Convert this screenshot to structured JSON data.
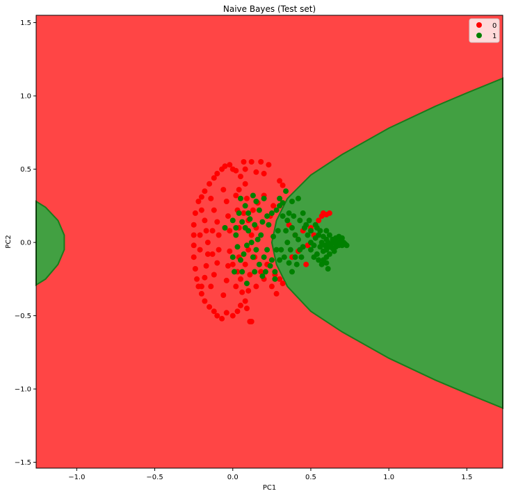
{
  "chart_data": {
    "type": "scatter",
    "title": "Naive Bayes (Test set)",
    "xlabel": "PC1",
    "ylabel": "PC2",
    "xlim": [
      -1.26,
      1.73
    ],
    "ylim": [
      -1.54,
      1.55
    ],
    "x_ticks": [
      -1.0,
      -0.5,
      0.0,
      0.5,
      1.0,
      1.5
    ],
    "x_tick_labels": [
      "−1.0",
      "−0.5",
      "0.0",
      "0.5",
      "1.0",
      "1.5"
    ],
    "y_ticks": [
      -1.5,
      -1.0,
      -0.5,
      0.0,
      0.5,
      1.0,
      1.5
    ],
    "y_tick_labels": [
      "−1.5",
      "−1.0",
      "−0.5",
      "0.0",
      "0.5",
      "1.0",
      "1.5"
    ],
    "grid": false,
    "legend": {
      "placement": "top-right",
      "entries": [
        "0",
        "1"
      ]
    },
    "colors": {
      "class_0_region": "#ff4545",
      "class_1_region": "#42a042",
      "class_0_points": "#ff0000",
      "class_1_points": "#008000",
      "boundary": "#1a7a1a"
    },
    "decision_regions": {
      "background_class": "0",
      "class_1_regions": [
        {
          "polygon": [
            [
              0.35,
              0.3
            ],
            [
              0.5,
              0.46
            ],
            [
              0.7,
              0.6
            ],
            [
              1.0,
              0.78
            ],
            [
              1.3,
              0.93
            ],
            [
              1.5,
              1.02
            ],
            [
              1.73,
              1.12
            ],
            [
              1.73,
              -1.13
            ],
            [
              1.5,
              -1.03
            ],
            [
              1.3,
              -0.94
            ],
            [
              1.0,
              -0.79
            ],
            [
              0.7,
              -0.61
            ],
            [
              0.5,
              -0.47
            ],
            [
              0.35,
              -0.3
            ],
            [
              0.28,
              -0.15
            ],
            [
              0.25,
              0.0
            ],
            [
              0.28,
              0.15
            ]
          ]
        },
        {
          "polygon": [
            [
              -1.26,
              0.28
            ],
            [
              -1.2,
              0.24
            ],
            [
              -1.12,
              0.15
            ],
            [
              -1.08,
              0.05
            ],
            [
              -1.08,
              -0.05
            ],
            [
              -1.12,
              -0.15
            ],
            [
              -1.2,
              -0.25
            ],
            [
              -1.26,
              -0.29
            ]
          ]
        }
      ]
    },
    "series": [
      {
        "name": "0",
        "points": [
          [
            -0.22,
            0.28
          ],
          [
            -0.2,
            0.31
          ],
          [
            -0.18,
            0.35
          ],
          [
            -0.15,
            0.4
          ],
          [
            -0.12,
            0.44
          ],
          [
            -0.1,
            0.47
          ],
          [
            -0.07,
            0.5
          ],
          [
            -0.05,
            0.52
          ],
          [
            -0.02,
            0.53
          ],
          [
            0.0,
            0.5
          ],
          [
            0.02,
            0.49
          ],
          [
            0.05,
            0.45
          ],
          [
            0.07,
            0.55
          ],
          [
            0.12,
            0.55
          ],
          [
            0.18,
            0.55
          ],
          [
            0.23,
            0.53
          ],
          [
            0.08,
            0.5
          ],
          [
            0.15,
            0.48
          ],
          [
            0.2,
            0.47
          ],
          [
            0.3,
            0.42
          ],
          [
            0.32,
            0.39
          ],
          [
            0.08,
            0.4
          ],
          [
            0.04,
            0.36
          ],
          [
            -0.24,
            0.2
          ],
          [
            -0.25,
            0.12
          ],
          [
            -0.25,
            0.05
          ],
          [
            -0.25,
            -0.02
          ],
          [
            -0.25,
            -0.1
          ],
          [
            -0.24,
            -0.18
          ],
          [
            -0.23,
            -0.25
          ],
          [
            -0.22,
            -0.3
          ],
          [
            -0.2,
            -0.35
          ],
          [
            -0.18,
            -0.4
          ],
          [
            -0.15,
            -0.44
          ],
          [
            -0.12,
            -0.47
          ],
          [
            -0.1,
            -0.5
          ],
          [
            -0.07,
            -0.52
          ],
          [
            -0.04,
            -0.48
          ],
          [
            0.0,
            -0.5
          ],
          [
            0.03,
            -0.47
          ],
          [
            0.05,
            -0.43
          ],
          [
            0.08,
            -0.4
          ],
          [
            0.11,
            -0.54
          ],
          [
            0.12,
            -0.54
          ],
          [
            0.09,
            -0.45
          ],
          [
            0.06,
            -0.34
          ],
          [
            -0.2,
            0.22
          ],
          [
            -0.18,
            0.15
          ],
          [
            -0.17,
            0.08
          ],
          [
            -0.16,
            0.0
          ],
          [
            -0.16,
            -0.08
          ],
          [
            -0.17,
            -0.16
          ],
          [
            -0.18,
            -0.24
          ],
          [
            -0.2,
            -0.3
          ],
          [
            -0.14,
            0.3
          ],
          [
            -0.12,
            0.22
          ],
          [
            -0.1,
            0.14
          ],
          [
            -0.09,
            0.05
          ],
          [
            -0.09,
            -0.05
          ],
          [
            -0.1,
            -0.14
          ],
          [
            -0.12,
            -0.22
          ],
          [
            -0.14,
            -0.3
          ],
          [
            -0.06,
            0.36
          ],
          [
            -0.04,
            0.28
          ],
          [
            -0.03,
            0.18
          ],
          [
            -0.02,
            0.08
          ],
          [
            -0.02,
            -0.06
          ],
          [
            -0.03,
            -0.16
          ],
          [
            -0.04,
            -0.26
          ],
          [
            -0.06,
            -0.36
          ],
          [
            0.02,
            0.32
          ],
          [
            0.03,
            0.22
          ],
          [
            0.04,
            0.1
          ],
          [
            0.04,
            -0.1
          ],
          [
            0.03,
            -0.2
          ],
          [
            0.02,
            -0.3
          ],
          [
            -0.21,
            0.05
          ],
          [
            -0.21,
            -0.05
          ],
          [
            -0.13,
            0.08
          ],
          [
            -0.13,
            -0.08
          ],
          [
            0.1,
            0.15
          ],
          [
            0.12,
            0.05
          ],
          [
            0.1,
            -0.05
          ],
          [
            0.08,
            -0.15
          ],
          [
            0.14,
            -0.1
          ],
          [
            0.15,
            0.1
          ],
          [
            0.18,
            -0.2
          ],
          [
            0.2,
            -0.25
          ],
          [
            0.22,
            -0.15
          ],
          [
            0.25,
            -0.3
          ],
          [
            0.28,
            -0.35
          ],
          [
            0.3,
            -0.25
          ],
          [
            0.27,
            -0.22
          ],
          [
            0.32,
            -0.28
          ],
          [
            0.24,
            0.18
          ],
          [
            0.26,
            0.25
          ],
          [
            0.2,
            0.32
          ],
          [
            0.16,
            0.27
          ],
          [
            0.13,
            0.22
          ],
          [
            0.36,
            0.12
          ],
          [
            0.4,
            0.05
          ],
          [
            0.42,
            -0.06
          ],
          [
            0.38,
            -0.1
          ],
          [
            0.45,
            0.08
          ],
          [
            0.47,
            -0.15
          ],
          [
            0.5,
            0.1
          ],
          [
            0.55,
            0.15
          ],
          [
            0.58,
            0.2
          ],
          [
            0.6,
            0.19
          ],
          [
            0.62,
            0.2
          ],
          [
            0.57,
            0.18
          ],
          [
            0.52,
            0.05
          ],
          [
            0.48,
            -0.02
          ],
          [
            0.15,
            -0.3
          ],
          [
            0.1,
            -0.33
          ],
          [
            0.05,
            -0.25
          ],
          [
            0.0,
            -0.15
          ],
          [
            0.07,
            0.2
          ],
          [
            0.09,
            0.3
          ],
          [
            0.11,
            -0.22
          ]
        ]
      },
      {
        "name": "1",
        "points": [
          [
            -0.05,
            0.1
          ],
          [
            0.0,
            0.15
          ],
          [
            0.02,
            0.05
          ],
          [
            0.05,
            0.3
          ],
          [
            0.08,
            0.25
          ],
          [
            0.1,
            0.2
          ],
          [
            0.13,
            0.32
          ],
          [
            0.15,
            0.28
          ],
          [
            0.17,
            0.22
          ],
          [
            0.2,
            0.3
          ],
          [
            0.22,
            0.18
          ],
          [
            0.25,
            0.2
          ],
          [
            0.28,
            0.22
          ],
          [
            0.3,
            0.25
          ],
          [
            0.32,
            0.27
          ],
          [
            0.35,
            0.15
          ],
          [
            0.38,
            0.1
          ],
          [
            0.4,
            0.05
          ],
          [
            0.43,
            0.15
          ],
          [
            0.45,
            -0.03
          ],
          [
            0.43,
            -0.05
          ],
          [
            0.4,
            -0.1
          ],
          [
            0.37,
            -0.05
          ],
          [
            0.35,
            0.0
          ],
          [
            0.33,
            -0.1
          ],
          [
            0.3,
            -0.12
          ],
          [
            0.28,
            -0.05
          ],
          [
            0.25,
            -0.12
          ],
          [
            0.22,
            -0.05
          ],
          [
            0.2,
            -0.1
          ],
          [
            0.18,
            0.05
          ],
          [
            0.15,
            -0.05
          ],
          [
            0.12,
            0.0
          ],
          [
            0.1,
            0.08
          ],
          [
            0.07,
            -0.08
          ],
          [
            0.05,
            -0.12
          ],
          [
            0.03,
            -0.03
          ],
          [
            0.0,
            -0.1
          ],
          [
            0.02,
            0.1
          ],
          [
            0.06,
            0.14
          ],
          [
            0.09,
            -0.02
          ],
          [
            0.14,
            0.12
          ],
          [
            0.17,
            -0.15
          ],
          [
            0.21,
            -0.2
          ],
          [
            0.24,
            -0.16
          ],
          [
            0.27,
            -0.2
          ],
          [
            0.31,
            -0.05
          ],
          [
            0.34,
            0.08
          ],
          [
            0.36,
            0.2
          ],
          [
            0.39,
            0.18
          ],
          [
            0.42,
            0.02
          ],
          [
            0.46,
            0.1
          ],
          [
            0.48,
            0.05
          ],
          [
            0.5,
            0.0
          ],
          [
            0.5,
            -0.05
          ],
          [
            0.52,
            -0.02
          ],
          [
            0.53,
            0.03
          ],
          [
            0.54,
            -0.08
          ],
          [
            0.55,
            0.05
          ],
          [
            0.56,
            -0.03
          ],
          [
            0.57,
            0.0
          ],
          [
            0.58,
            -0.06
          ],
          [
            0.58,
            0.04
          ],
          [
            0.59,
            -0.02
          ],
          [
            0.6,
            0.02
          ],
          [
            0.6,
            -0.05
          ],
          [
            0.61,
            0.0
          ],
          [
            0.62,
            -0.03
          ],
          [
            0.62,
            0.05
          ],
          [
            0.63,
            -0.01
          ],
          [
            0.64,
            0.02
          ],
          [
            0.64,
            -0.04
          ],
          [
            0.65,
            0.0
          ],
          [
            0.66,
            0.03
          ],
          [
            0.66,
            -0.03
          ],
          [
            0.67,
            0.0
          ],
          [
            0.68,
            -0.02
          ],
          [
            0.69,
            0.01
          ],
          [
            0.7,
            -0.02
          ],
          [
            0.71,
            0.0
          ],
          [
            0.72,
            -0.01
          ],
          [
            0.73,
            -0.02
          ],
          [
            0.56,
            0.08
          ],
          [
            0.6,
            0.08
          ],
          [
            0.52,
            -0.1
          ],
          [
            0.55,
            -0.12
          ],
          [
            0.58,
            -0.12
          ],
          [
            0.57,
            -0.15
          ],
          [
            0.54,
            0.1
          ],
          [
            0.5,
            0.08
          ],
          [
            0.47,
            0.12
          ],
          [
            0.44,
            -0.1
          ],
          [
            0.41,
            -0.15
          ],
          [
            0.38,
            -0.2
          ],
          [
            0.36,
            -0.14
          ],
          [
            0.32,
            0.18
          ],
          [
            0.29,
            0.08
          ],
          [
            0.26,
            0.04
          ],
          [
            0.23,
            0.12
          ],
          [
            0.19,
            0.14
          ],
          [
            0.16,
            0.02
          ],
          [
            0.13,
            -0.1
          ],
          [
            0.11,
            0.16
          ],
          [
            0.08,
            0.1
          ],
          [
            0.04,
            0.2
          ],
          [
            0.01,
            -0.2
          ],
          [
            0.06,
            -0.2
          ],
          [
            0.09,
            -0.28
          ],
          [
            0.14,
            -0.2
          ],
          [
            0.19,
            -0.23
          ],
          [
            0.27,
            -0.25
          ],
          [
            0.3,
            0.3
          ],
          [
            0.34,
            0.35
          ],
          [
            0.38,
            0.28
          ],
          [
            0.42,
            0.3
          ],
          [
            0.45,
            0.2
          ],
          [
            0.49,
            0.15
          ],
          [
            0.53,
            0.12
          ],
          [
            0.62,
            -0.08
          ],
          [
            0.65,
            -0.06
          ],
          [
            0.68,
            0.04
          ],
          [
            0.7,
            0.03
          ],
          [
            0.6,
            -0.1
          ],
          [
            0.6,
            -0.14
          ],
          [
            0.61,
            -0.18
          ]
        ]
      }
    ]
  }
}
